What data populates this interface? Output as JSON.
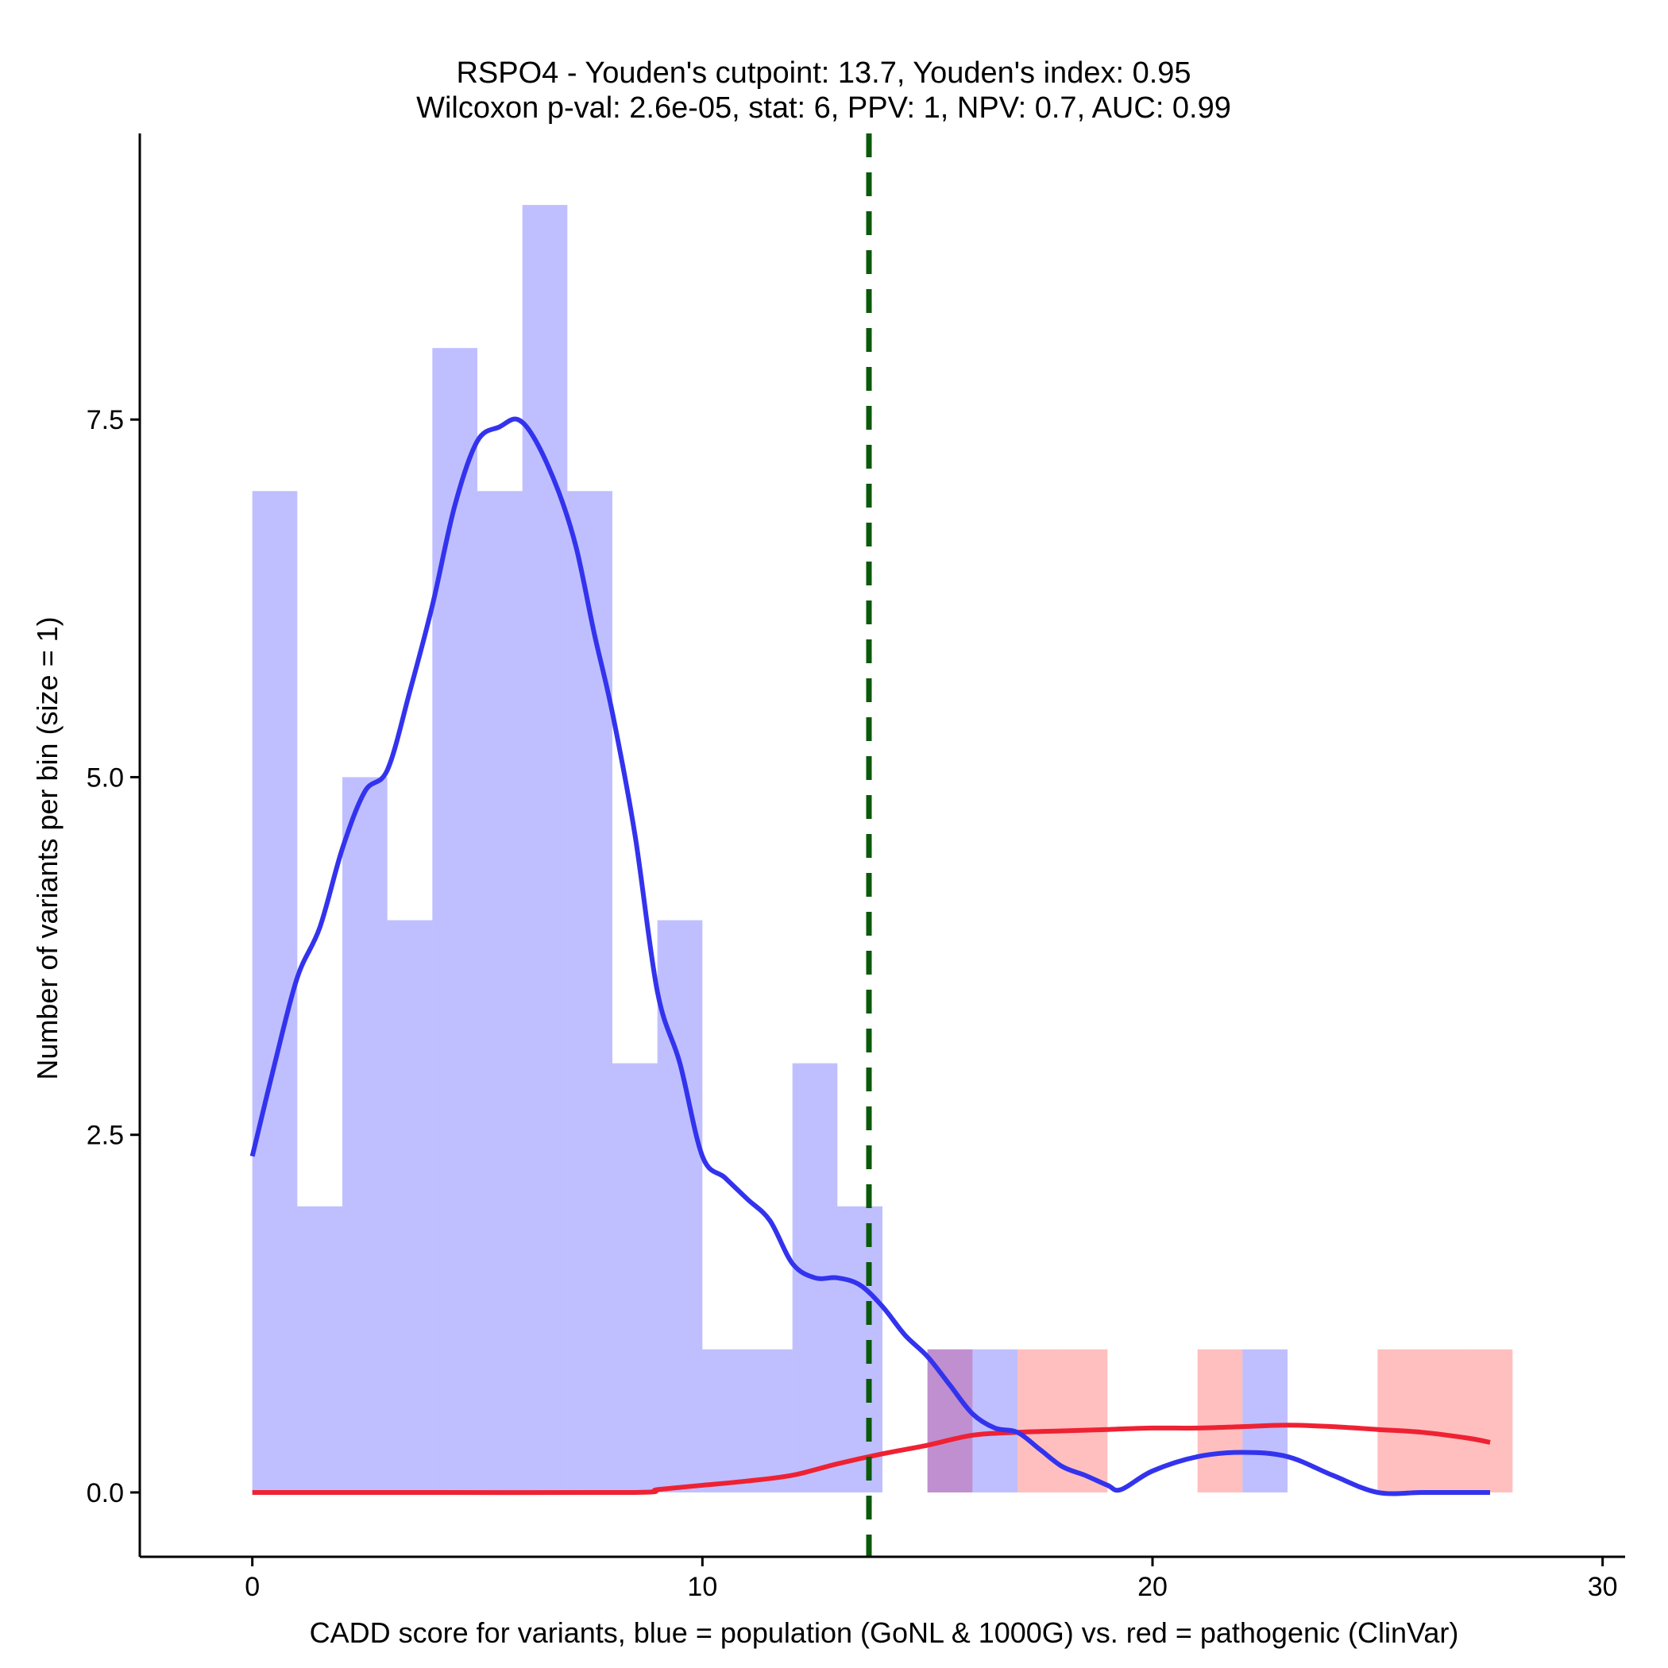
{
  "chart_data": {
    "type": "histogram",
    "title_line1": "RSPO4 - Youden's cutpoint: 13.7, Youden's index: 0.95",
    "title_line2": "Wilcoxon p-val: 2.6e-05, stat: 6, PPV: 1, NPV: 0.7, AUC: 0.99",
    "xlabel": "CADD score for variants, blue = population (GoNL & 1000G) vs. red = pathogenic (ClinVar)",
    "ylabel": "Number of variants per bin (size = 1)",
    "xlim": [
      -2.5,
      30.5
    ],
    "ylim": [
      -0.45,
      9.5
    ],
    "x_ticks": [
      0,
      10,
      20,
      30
    ],
    "x_tick_labels": [
      "0",
      "10",
      "20",
      "30"
    ],
    "y_ticks": [
      0,
      2.5,
      5,
      7.5
    ],
    "y_tick_labels": [
      "0.0",
      "2.5",
      "5.0",
      "7.5"
    ],
    "bin_width": 1,
    "cutpoint": 13.7,
    "colors": {
      "population_fill": "#0000ff",
      "pathogenic_fill": "#ff0000",
      "population_line": "#3333ee",
      "pathogenic_line": "#ee2233",
      "cutpoint_line": "#0b5a0b",
      "axis": "#000000"
    },
    "series": [
      {
        "name": "population",
        "bins": [
          {
            "x0": 0,
            "count": 7
          },
          {
            "x0": 1,
            "count": 2
          },
          {
            "x0": 2,
            "count": 5
          },
          {
            "x0": 3,
            "count": 4
          },
          {
            "x0": 4,
            "count": 8
          },
          {
            "x0": 5,
            "count": 7
          },
          {
            "x0": 6,
            "count": 9
          },
          {
            "x0": 7,
            "count": 7
          },
          {
            "x0": 8,
            "count": 3
          },
          {
            "x0": 9,
            "count": 4
          },
          {
            "x0": 10,
            "count": 1
          },
          {
            "x0": 11,
            "count": 1
          },
          {
            "x0": 12,
            "count": 3
          },
          {
            "x0": 13,
            "count": 2
          },
          {
            "x0": 15,
            "count": 1
          },
          {
            "x0": 16,
            "count": 1
          },
          {
            "x0": 22,
            "count": 1
          }
        ],
        "density_curve": [
          [
            0,
            2.35
          ],
          [
            0.5,
            3.0
          ],
          [
            1,
            3.6
          ],
          [
            1.5,
            3.95
          ],
          [
            2,
            4.5
          ],
          [
            2.5,
            4.9
          ],
          [
            3,
            5.05
          ],
          [
            3.5,
            5.6
          ],
          [
            4,
            6.2
          ],
          [
            4.5,
            6.9
          ],
          [
            5,
            7.35
          ],
          [
            5.5,
            7.45
          ],
          [
            5.9,
            7.5
          ],
          [
            6.3,
            7.35
          ],
          [
            6.8,
            7.0
          ],
          [
            7.2,
            6.6
          ],
          [
            7.6,
            6.0
          ],
          [
            8,
            5.45
          ],
          [
            8.5,
            4.6
          ],
          [
            9,
            3.5
          ],
          [
            9.5,
            3.0
          ],
          [
            10,
            2.35
          ],
          [
            10.5,
            2.2
          ],
          [
            11,
            2.05
          ],
          [
            11.5,
            1.9
          ],
          [
            12,
            1.6
          ],
          [
            12.5,
            1.5
          ],
          [
            13,
            1.5
          ],
          [
            13.5,
            1.45
          ],
          [
            14,
            1.3
          ],
          [
            14.5,
            1.1
          ],
          [
            15,
            0.95
          ],
          [
            15.5,
            0.75
          ],
          [
            16,
            0.55
          ],
          [
            16.5,
            0.45
          ],
          [
            17,
            0.42
          ],
          [
            17.5,
            0.3
          ],
          [
            18,
            0.18
          ],
          [
            18.5,
            0.12
          ],
          [
            19,
            0.05
          ],
          [
            19.3,
            0.02
          ],
          [
            20,
            0.15
          ],
          [
            21,
            0.25
          ],
          [
            22,
            0.28
          ],
          [
            23,
            0.25
          ],
          [
            24,
            0.12
          ],
          [
            25,
            0.0
          ],
          [
            26,
            0.0
          ],
          [
            27,
            0.0
          ],
          [
            27.5,
            0.0
          ]
        ]
      },
      {
        "name": "pathogenic",
        "bins": [
          {
            "x0": 15,
            "count": 1
          },
          {
            "x0": 17,
            "count": 1
          },
          {
            "x0": 18,
            "count": 1
          },
          {
            "x0": 21,
            "count": 1
          },
          {
            "x0": 25,
            "count": 1
          },
          {
            "x0": 26,
            "count": 1
          },
          {
            "x0": 27,
            "count": 1
          }
        ],
        "density_curve": [
          [
            0,
            0.0
          ],
          [
            4,
            0.0
          ],
          [
            8.5,
            0.0
          ],
          [
            9,
            0.02
          ],
          [
            10,
            0.05
          ],
          [
            11,
            0.08
          ],
          [
            12,
            0.12
          ],
          [
            13,
            0.2
          ],
          [
            14,
            0.27
          ],
          [
            15,
            0.33
          ],
          [
            16,
            0.4
          ],
          [
            17,
            0.42
          ],
          [
            18,
            0.43
          ],
          [
            19,
            0.44
          ],
          [
            20,
            0.45
          ],
          [
            21,
            0.45
          ],
          [
            22,
            0.46
          ],
          [
            23,
            0.47
          ],
          [
            24,
            0.46
          ],
          [
            25,
            0.44
          ],
          [
            26,
            0.42
          ],
          [
            27,
            0.38
          ],
          [
            27.5,
            0.35
          ]
        ]
      }
    ]
  }
}
